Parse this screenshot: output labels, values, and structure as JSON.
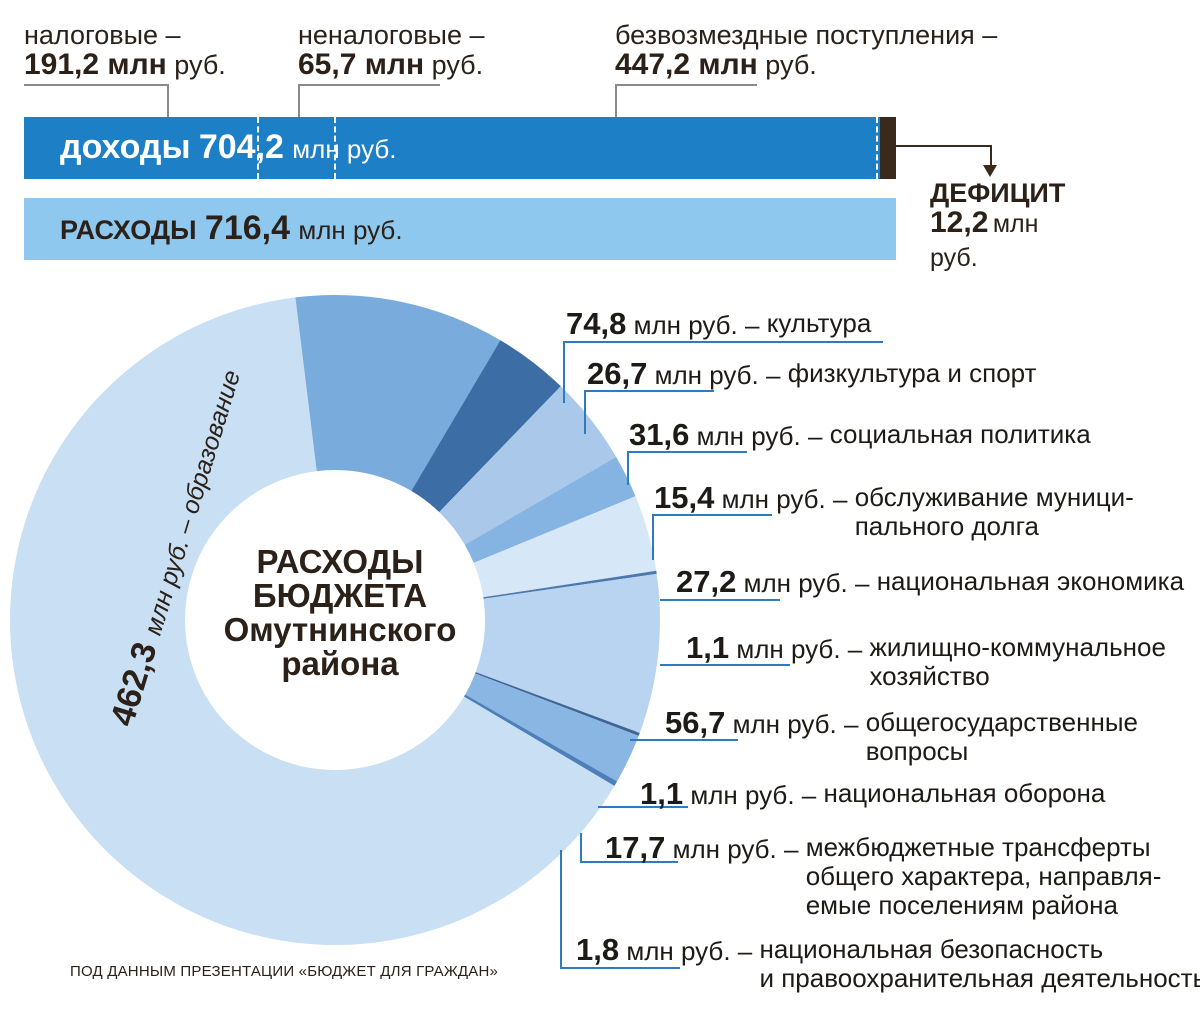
{
  "income_parts": [
    {
      "label": "налоговые –",
      "value": "191,2 млн",
      "unit": "руб."
    },
    {
      "label": "неналоговые –",
      "value": "65,7 млн",
      "unit": "руб."
    },
    {
      "label": "безвозмездные поступления –",
      "value": "447,2 млн",
      "unit": "руб."
    }
  ],
  "income_bar": {
    "label": "доходы",
    "value": "704,2",
    "unit": "млн руб."
  },
  "expense_bar": {
    "label": "РАСХОДЫ",
    "value": "716,4",
    "unit": "млн руб."
  },
  "deficit": {
    "label": "ДЕФИЦИТ",
    "value": "12,2",
    "unit1": "млн",
    "unit2": "руб."
  },
  "center_title": [
    "РАСХОДЫ",
    "БЮДЖЕТА",
    "Омутнинского",
    "района"
  ],
  "donut_labels": {
    "education_value": "462,3",
    "education_text": "млн руб. – образование"
  },
  "expense_items": [
    {
      "value": "74,8",
      "unit": "млн руб. –",
      "category": "культура"
    },
    {
      "value": "26,7",
      "unit": "млн руб. –",
      "category": "физкультура и спорт"
    },
    {
      "value": "31,6",
      "unit": "млн руб. –",
      "category": "социальная политика"
    },
    {
      "value": "15,4",
      "unit": "млн руб. –",
      "category": "обслуживание муници-\nпального долга"
    },
    {
      "value": "27,2",
      "unit": "млн руб. –",
      "category": "национальная экономика"
    },
    {
      "value": "1,1",
      "unit": "млн руб. –",
      "category": "жилищно-коммунальное\nхозяйство"
    },
    {
      "value": "56,7",
      "unit": "млн руб. –",
      "category": "общегосударственные\nвопросы"
    },
    {
      "value": "1,1",
      "unit": "млн руб. –",
      "category": "национальная оборона"
    },
    {
      "value": "17,7",
      "unit": "млн руб. –",
      "category": "межбюджетные трансферты\nобщего характера, направля-\nемые поселениям района"
    },
    {
      "value": "1,8",
      "unit": "млн руб. –",
      "category": "национальная безопасность\nи правоохранительная деятельность"
    }
  ],
  "source": "ПОД ДАННЫМ ПРЕЗЕНТАЦИИ «БЮДЖЕТ ДЛЯ ГРАЖДАН»",
  "colors": {
    "income_bar": "#1d7fc5",
    "expense_bar": "#8ec8ef",
    "deficit_block": "#3a2a1c",
    "text": "#2b2118"
  },
  "chart_data": [
    {
      "type": "bar",
      "categories": [
        "доходы",
        "расходы"
      ],
      "values": [
        704.2,
        716.4
      ],
      "income_components": [
        {
          "name": "налоговые",
          "value": 191.2
        },
        {
          "name": "неналоговые",
          "value": 65.7
        },
        {
          "name": "безвозмездные поступления",
          "value": 447.2
        }
      ],
      "deficit": 12.2,
      "unit": "млн руб."
    },
    {
      "type": "pie",
      "title": "РАСХОДЫ БЮДЖЕТА Омутнинского района",
      "unit": "млн руб.",
      "slices": [
        {
          "name": "образование",
          "value": 462.3,
          "color": "#c9dff4"
        },
        {
          "name": "культура",
          "value": 74.8,
          "color": "#79abdc"
        },
        {
          "name": "физкультура и спорт",
          "value": 26.7,
          "color": "#3c6ea5"
        },
        {
          "name": "социальная политика",
          "value": 31.6,
          "color": "#a9c8ea"
        },
        {
          "name": "обслуживание муниципального долга",
          "value": 15.4,
          "color": "#86b4e2"
        },
        {
          "name": "национальная экономика",
          "value": 27.2,
          "color": "#d6e7f8"
        },
        {
          "name": "жилищно-коммунальное хозяйство",
          "value": 1.1,
          "color": "#4c78ad"
        },
        {
          "name": "общегосударственные вопросы",
          "value": 56.7,
          "color": "#b8d4f1"
        },
        {
          "name": "национальная оборона",
          "value": 1.1,
          "color": "#3f6594"
        },
        {
          "name": "межбюджетные трансферты общего характера, направляемые поселениям района",
          "value": 17.7,
          "color": "#8ab6e3"
        },
        {
          "name": "национальная безопасность и правоохранительная деятельность",
          "value": 1.8,
          "color": "#4d7fba"
        }
      ]
    }
  ]
}
